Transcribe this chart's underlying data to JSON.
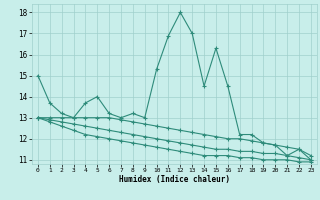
{
  "x": [
    0,
    1,
    2,
    3,
    4,
    5,
    6,
    7,
    8,
    9,
    10,
    11,
    12,
    13,
    14,
    15,
    16,
    17,
    18,
    19,
    20,
    21,
    22,
    23
  ],
  "line1": [
    15.0,
    13.7,
    13.2,
    13.0,
    13.7,
    14.0,
    13.2,
    13.0,
    13.2,
    13.0,
    15.3,
    16.9,
    18.0,
    17.0,
    14.5,
    16.3,
    14.5,
    12.2,
    12.2,
    11.8,
    11.7,
    11.2,
    11.5,
    11.0
  ],
  "line2": [
    13.0,
    13.0,
    13.0,
    13.0,
    13.0,
    13.0,
    13.0,
    12.9,
    12.8,
    12.7,
    12.6,
    12.5,
    12.4,
    12.3,
    12.2,
    12.1,
    12.0,
    12.0,
    11.9,
    11.8,
    11.7,
    11.6,
    11.5,
    11.2
  ],
  "line3": [
    13.0,
    12.9,
    12.8,
    12.7,
    12.6,
    12.5,
    12.4,
    12.3,
    12.2,
    12.1,
    12.0,
    11.9,
    11.8,
    11.7,
    11.6,
    11.5,
    11.5,
    11.4,
    11.4,
    11.3,
    11.3,
    11.2,
    11.1,
    11.0
  ],
  "line4": [
    13.0,
    12.8,
    12.6,
    12.4,
    12.2,
    12.1,
    12.0,
    11.9,
    11.8,
    11.7,
    11.6,
    11.5,
    11.4,
    11.3,
    11.2,
    11.2,
    11.2,
    11.1,
    11.1,
    11.0,
    11.0,
    11.0,
    10.9,
    10.9
  ],
  "line_color": "#2e8b7a",
  "bg_color": "#c8eeea",
  "grid_color": "#a0d0cc",
  "xlabel": "Humidex (Indice chaleur)",
  "ylim": [
    10.8,
    18.4
  ],
  "xlim": [
    -0.5,
    23.5
  ],
  "yticks": [
    11,
    12,
    13,
    14,
    15,
    16,
    17,
    18
  ],
  "xticks": [
    0,
    1,
    2,
    3,
    4,
    5,
    6,
    7,
    8,
    9,
    10,
    11,
    12,
    13,
    14,
    15,
    16,
    17,
    18,
    19,
    20,
    21,
    22,
    23
  ]
}
